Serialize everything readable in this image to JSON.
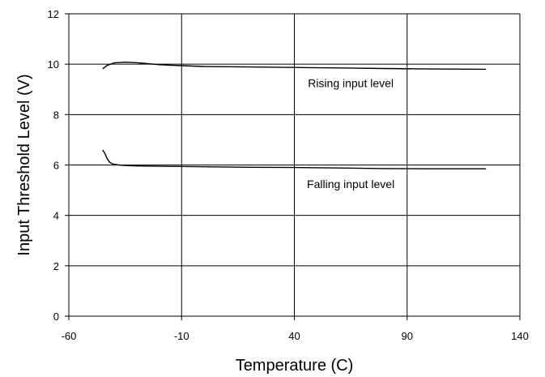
{
  "chart_data": {
    "type": "line",
    "title": "",
    "xlabel": "Temperature (C)",
    "ylabel": "Input Threshold Level (V)",
    "xlim": [
      -60,
      140
    ],
    "ylim": [
      0,
      12
    ],
    "x_ticks": [
      "-60",
      "-10",
      "40",
      "90",
      "140"
    ],
    "y_ticks": [
      "0",
      "2",
      "4",
      "6",
      "8",
      "10",
      "12"
    ],
    "x_tick_values": [
      -60,
      -10,
      40,
      90,
      140
    ],
    "y_tick_values": [
      0,
      2,
      4,
      6,
      8,
      10,
      12
    ],
    "grid": true,
    "legend": "none",
    "colors": {
      "line": "#000000",
      "grid": "#000000",
      "background": "#ffffff"
    },
    "series": [
      {
        "x": [
          -45,
          -43,
          -40,
          -35,
          -30,
          -25,
          -20,
          -10,
          0,
          20,
          40,
          60,
          80,
          100,
          125
        ],
        "y": [
          9.82,
          9.95,
          10.05,
          10.08,
          10.06,
          10.02,
          9.98,
          9.94,
          9.91,
          9.89,
          9.87,
          9.85,
          9.83,
          9.81,
          9.8
        ]
      },
      {
        "x": [
          -45,
          -44,
          -43,
          -42,
          -41,
          -40,
          -38,
          -35,
          -30,
          -20,
          0,
          20,
          40,
          60,
          80,
          100,
          125
        ],
        "y": [
          6.6,
          6.45,
          6.25,
          6.12,
          6.06,
          6.03,
          6.0,
          5.98,
          5.96,
          5.95,
          5.93,
          5.91,
          5.9,
          5.88,
          5.86,
          5.85,
          5.85
        ]
      }
    ],
    "annotations": [
      {
        "text": "Rising input level",
        "x": 65,
        "y": 9.25
      },
      {
        "text": "Falling input level",
        "x": 65,
        "y": 5.25
      }
    ]
  }
}
